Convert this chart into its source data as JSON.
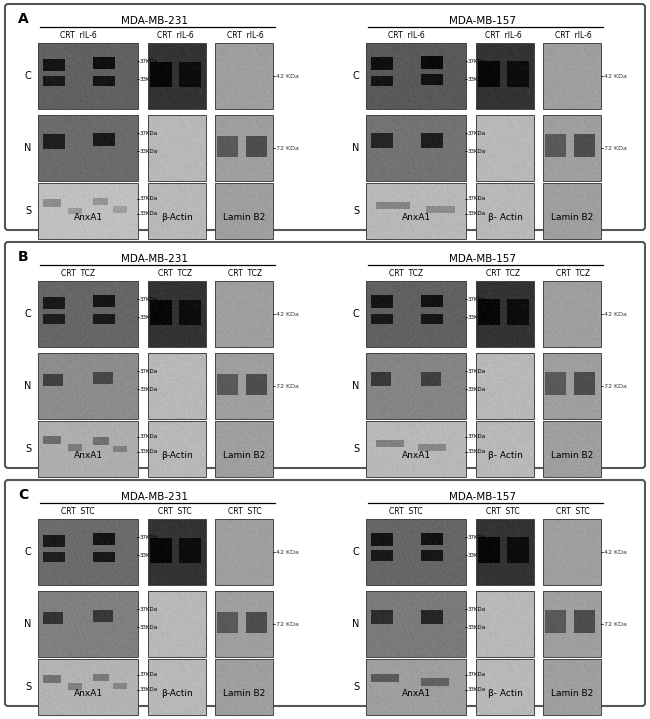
{
  "figure_bg": "#ffffff",
  "panels": [
    {
      "label": "A",
      "left_title": "MDA-MB-231",
      "right_title": "MDA-MB-157",
      "treatment": "rIL-6"
    },
    {
      "label": "B",
      "left_title": "MDA-MB-231",
      "right_title": "MDA-MB-157",
      "treatment": "TCZ"
    },
    {
      "label": "C",
      "left_title": "MDA-MB-231",
      "right_title": "MDA-MB-157",
      "treatment": "STC"
    }
  ],
  "rows": [
    "C",
    "N",
    "S"
  ],
  "anx_label": "AnxA1",
  "actin_label_left": "β-Actin",
  "actin_label_right": "β- Actin",
  "lamin_label": "Lamin B2",
  "kda_42": "42 KDa",
  "kda_72": "72 KDa",
  "kda_37": "37KDa",
  "kda_33": "33KDa"
}
